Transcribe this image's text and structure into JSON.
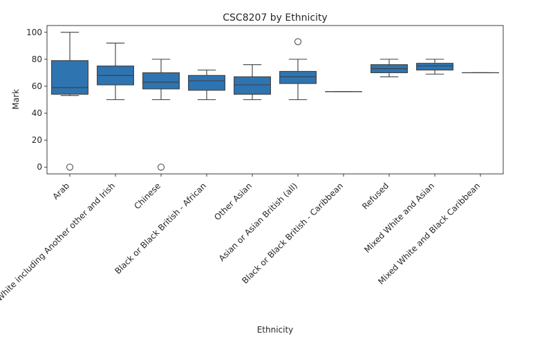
{
  "chart_data": {
    "type": "box",
    "title": "CSC8207 by Ethnicity",
    "xlabel": "Ethnicity",
    "ylabel": "Mark",
    "ylim": [
      -5,
      105
    ],
    "yticks": [
      0,
      20,
      40,
      60,
      80,
      100
    ],
    "grid": false,
    "legend": "none",
    "box_color": "#2e74b0",
    "line_color": "#3d3d3d",
    "categories": [
      "Arab",
      "White including Another other and Irish",
      "Chinese",
      "Black or Black British - African",
      "Other Asian",
      "Asian or Asian British (all)",
      "Black or Black British - Caribbean",
      "Refused",
      "Mixed White and Asian",
      "Mixed White and Black Caribbean"
    ],
    "boxes": [
      {
        "whisker_low": 53,
        "q1": 54,
        "median": 59,
        "q3": 79,
        "whisker_high": 100,
        "outliers": [
          0
        ]
      },
      {
        "whisker_low": 50,
        "q1": 61,
        "median": 68,
        "q3": 75,
        "whisker_high": 92,
        "outliers": []
      },
      {
        "whisker_low": 50,
        "q1": 58,
        "median": 63,
        "q3": 70,
        "whisker_high": 80,
        "outliers": [
          0
        ]
      },
      {
        "whisker_low": 50,
        "q1": 57,
        "median": 64,
        "q3": 68,
        "whisker_high": 72,
        "outliers": []
      },
      {
        "whisker_low": 50,
        "q1": 54,
        "median": 61,
        "q3": 67,
        "whisker_high": 76,
        "outliers": []
      },
      {
        "whisker_low": 50,
        "q1": 62,
        "median": 67,
        "q3": 71,
        "whisker_high": 80,
        "outliers": [
          93
        ]
      },
      {
        "whisker_low": 56,
        "q1": 56,
        "median": 56,
        "q3": 56,
        "whisker_high": 56,
        "outliers": []
      },
      {
        "whisker_low": 67,
        "q1": 70,
        "median": 73,
        "q3": 76,
        "whisker_high": 80,
        "outliers": []
      },
      {
        "whisker_low": 69,
        "q1": 72,
        "median": 75,
        "q3": 77,
        "whisker_high": 80,
        "outliers": []
      },
      {
        "whisker_low": 70,
        "q1": 70,
        "median": 70,
        "q3": 70,
        "whisker_high": 70,
        "outliers": []
      }
    ]
  }
}
